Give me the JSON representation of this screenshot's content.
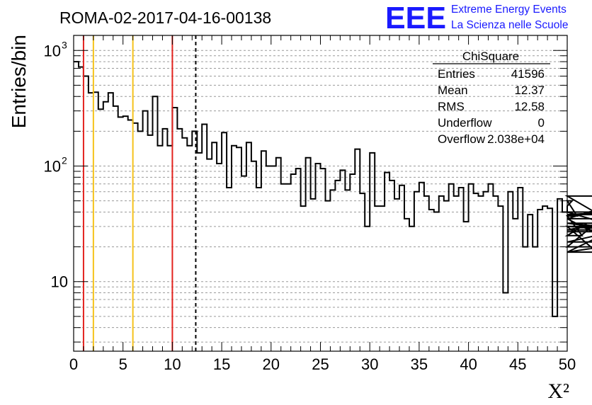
{
  "chart_data": {
    "type": "histogram",
    "title": "ROMA-02-2017-04-16-00138",
    "xlabel": "X²",
    "ylabel": "Entries/bin",
    "xlim": [
      0,
      50
    ],
    "ylim": [
      2.5,
      1350
    ],
    "yscale": "log",
    "grid": "y-dashed",
    "bin_width": 0.5,
    "x_ticks": [
      "0",
      "5",
      "10",
      "15",
      "20",
      "25",
      "30",
      "35",
      "40",
      "45",
      "50"
    ],
    "y_ticks": [
      {
        "value": 10,
        "base": "10",
        "exp": ""
      },
      {
        "value": 100,
        "base": "10",
        "exp": "2"
      },
      {
        "value": 1000,
        "base": "10",
        "exp": "3"
      }
    ],
    "values": [
      800,
      720,
      600,
      430,
      435,
      310,
      360,
      430,
      330,
      265,
      270,
      250,
      235,
      200,
      300,
      185,
      400,
      150,
      210,
      150,
      320,
      210,
      175,
      150,
      200,
      130,
      230,
      115,
      160,
      105,
      195,
      65,
      150,
      145,
      82,
      160,
      110,
      65,
      135,
      100,
      100,
      118,
      70,
      70,
      85,
      95,
      45,
      118,
      52,
      105,
      95,
      50,
      62,
      75,
      92,
      62,
      85,
      140,
      58,
      30,
      130,
      45,
      45,
      88,
      75,
      52,
      68,
      35,
      30,
      60,
      72,
      55,
      42,
      40,
      55,
      50,
      70,
      55,
      65,
      33,
      70,
      58,
      55,
      60,
      70,
      55,
      45,
      8,
      60,
      35,
      65,
      20,
      38,
      20,
      42,
      45,
      43,
      5,
      52,
      40,
      45,
      50,
      37,
      25,
      32,
      30,
      18,
      20,
      38,
      40,
      30,
      28,
      35,
      18,
      35,
      55,
      22,
      32,
      27
    ],
    "vertical_lines": [
      {
        "x": 1,
        "color": "#e3221e",
        "style": "solid"
      },
      {
        "x": 2,
        "color": "#f5c21b",
        "style": "solid"
      },
      {
        "x": 6,
        "color": "#f5c21b",
        "style": "solid"
      },
      {
        "x": 10,
        "color": "#e3221e",
        "style": "solid"
      },
      {
        "x": 12.37,
        "color": "#000000",
        "style": "dashed"
      }
    ]
  },
  "stats": {
    "title": "ChiSquare",
    "rows": [
      {
        "label": "Entries",
        "value": "41596"
      },
      {
        "label": "Mean",
        "value": "12.37"
      },
      {
        "label": "RMS",
        "value": "12.58"
      },
      {
        "label": "Underflow",
        "value": "0"
      },
      {
        "label": "Overflow",
        "value": "2.038e+04"
      }
    ]
  },
  "logo": {
    "mark": "EEE",
    "line1": "Extreme Energy Events",
    "line2": "La Scienza nelle Scuole",
    "color": "#1a1aff"
  }
}
